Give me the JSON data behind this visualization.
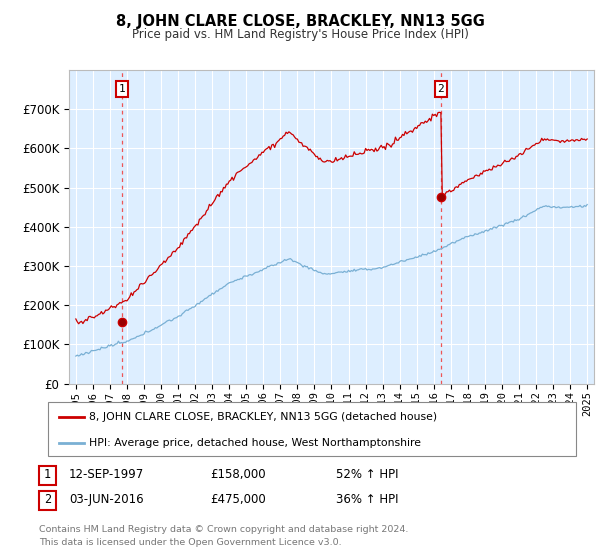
{
  "title": "8, JOHN CLARE CLOSE, BRACKLEY, NN13 5GG",
  "subtitle": "Price paid vs. HM Land Registry's House Price Index (HPI)",
  "hpi_label": "HPI: Average price, detached house, West Northamptonshire",
  "property_label": "8, JOHN CLARE CLOSE, BRACKLEY, NN13 5GG (detached house)",
  "footer": "Contains HM Land Registry data © Crown copyright and database right 2024.\nThis data is licensed under the Open Government Licence v3.0.",
  "sale1_year": 1997.7,
  "sale1_price": 158000,
  "sale2_year": 2016.42,
  "sale2_price": 475000,
  "red_color": "#cc0000",
  "blue_color": "#7ab0d4",
  "plot_bg": "#ddeeff",
  "grid_color": "#ffffff",
  "dashed_color": "#ee5555",
  "ylim": [
    0,
    800000
  ],
  "yticks": [
    0,
    100000,
    200000,
    300000,
    400000,
    500000,
    600000,
    700000
  ],
  "xlim_start": 1994.6,
  "xlim_end": 2025.4,
  "xticks": [
    1995,
    1996,
    1997,
    1998,
    1999,
    2000,
    2001,
    2002,
    2003,
    2004,
    2005,
    2006,
    2007,
    2008,
    2009,
    2010,
    2011,
    2012,
    2013,
    2014,
    2015,
    2016,
    2017,
    2018,
    2019,
    2020,
    2021,
    2022,
    2023,
    2024,
    2025
  ]
}
